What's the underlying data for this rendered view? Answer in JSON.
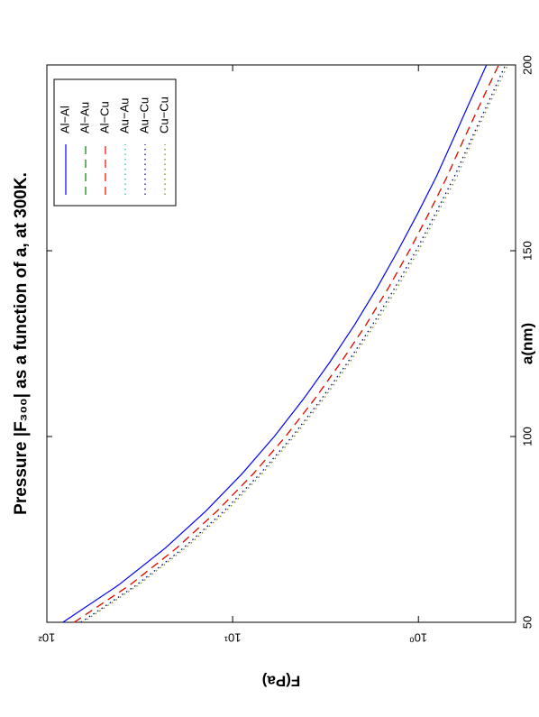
{
  "chart_data": {
    "type": "line",
    "title": "Pressure |F₃₀₀| as a function of a, at 300K.",
    "xlabel": "a(nm)",
    "ylabel": "F(Pa)",
    "x": [
      50,
      60,
      70,
      80,
      90,
      100,
      110,
      120,
      130,
      140,
      150,
      160,
      170,
      180,
      190,
      200
    ],
    "series": [
      {
        "name": "Al−Al",
        "color": "#0000ff",
        "style": "solid",
        "values": [
          82,
          41.2,
          23.0,
          13.9,
          8.89,
          5.97,
          4.17,
          3.0,
          2.21,
          1.67,
          1.29,
          1.01,
          0.8,
          0.65,
          0.53,
          0.43
        ]
      },
      {
        "name": "Al−Au",
        "color": "#008000",
        "style": "dashed",
        "values": [
          71.3,
          35.8,
          20.0,
          12.1,
          7.73,
          5.19,
          3.63,
          2.61,
          1.92,
          1.45,
          1.12,
          0.88,
          0.7,
          0.57,
          0.46,
          0.37
        ]
      },
      {
        "name": "Al−Cu",
        "color": "#ff0000",
        "style": "dashed",
        "values": [
          71.3,
          35.8,
          20.0,
          12.1,
          7.73,
          5.19,
          3.63,
          2.61,
          1.92,
          1.45,
          1.12,
          0.88,
          0.7,
          0.57,
          0.46,
          0.37
        ]
      },
      {
        "name": "Au−Au",
        "color": "#00bfbf",
        "style": "dotted",
        "values": [
          65.6,
          33.0,
          18.4,
          11.1,
          7.11,
          4.78,
          3.34,
          2.4,
          1.77,
          1.34,
          1.03,
          0.81,
          0.64,
          0.52,
          0.42,
          0.34
        ]
      },
      {
        "name": "Au−Cu",
        "color": "#00007f",
        "style": "dotted",
        "values": [
          65.6,
          33.0,
          18.4,
          11.1,
          7.11,
          4.78,
          3.34,
          2.4,
          1.77,
          1.34,
          1.03,
          0.81,
          0.64,
          0.52,
          0.42,
          0.34
        ]
      },
      {
        "name": "Cu−Cu",
        "color": "#7f7f00",
        "style": "dotted",
        "values": [
          64.0,
          32.2,
          17.9,
          10.8,
          6.93,
          4.66,
          3.25,
          2.34,
          1.72,
          1.3,
          1.0,
          0.79,
          0.62,
          0.51,
          0.41,
          0.33
        ]
      }
    ],
    "xlim": [
      50,
      200
    ],
    "xticks": [
      50,
      100,
      150,
      200
    ],
    "ylim": [
      0.3,
      100
    ],
    "ylog": true,
    "yticks": [
      {
        "value": 100,
        "label": "10²"
      },
      {
        "value": 10,
        "label": "10¹"
      },
      {
        "value": 1,
        "label": "10⁰"
      }
    ],
    "legend": "upper right",
    "rotation": -90
  }
}
